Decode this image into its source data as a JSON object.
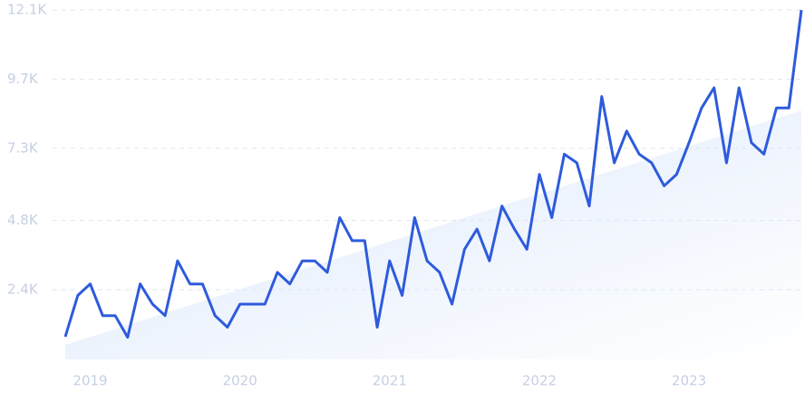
{
  "chart_data": {
    "type": "line",
    "categories": [
      null,
      null,
      "2019",
      null,
      null,
      null,
      null,
      null,
      null,
      null,
      null,
      null,
      null,
      null,
      "2020",
      null,
      null,
      null,
      null,
      null,
      null,
      null,
      null,
      null,
      null,
      null,
      "2021",
      null,
      null,
      null,
      null,
      null,
      null,
      null,
      null,
      null,
      null,
      null,
      "2022",
      null,
      null,
      null,
      null,
      null,
      null,
      null,
      null,
      null,
      null,
      null,
      "2023",
      null,
      null,
      null,
      null,
      null,
      null,
      null,
      null,
      null
    ],
    "values": [
      770,
      2200,
      2600,
      1500,
      1500,
      750,
      2600,
      1900,
      1500,
      3400,
      2600,
      2600,
      1500,
      1100,
      1900,
      1900,
      1900,
      3000,
      2600,
      3400,
      3400,
      3000,
      4900,
      4100,
      4100,
      1100,
      3400,
      2200,
      4900,
      3400,
      3000,
      1900,
      3800,
      4500,
      3400,
      5300,
      4500,
      3800,
      6400,
      4900,
      7100,
      6800,
      5300,
      9100,
      6800,
      7900,
      7100,
      6800,
      6000,
      6400,
      7500,
      8700,
      9400,
      6800,
      9400,
      7500,
      7100,
      8700,
      8700,
      12100
    ],
    "color": "#2e5bdc",
    "ylim": [
      0,
      12100
    ],
    "yticks": [
      {
        "value": 2400,
        "label": "2.4K"
      },
      {
        "value": 4800,
        "label": "4.8K"
      },
      {
        "value": 7300,
        "label": "7.3K"
      },
      {
        "value": 9700,
        "label": "9.7K"
      },
      {
        "value": 12100,
        "label": "12.1K"
      }
    ],
    "grid": true
  }
}
